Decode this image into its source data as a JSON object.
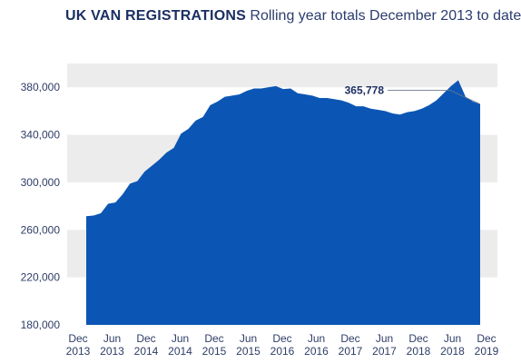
{
  "chart_data": {
    "type": "area",
    "title": "UK VAN REGISTRATIONS",
    "subtitle": "Rolling year totals December 2013 to date",
    "xlabel": "",
    "ylabel": "",
    "ylim": [
      180000,
      400000
    ],
    "ytick_values": [
      180000,
      220000,
      260000,
      300000,
      340000,
      380000
    ],
    "ytick_labels": [
      "180,000",
      "220,000",
      "260,000",
      "300,000",
      "340,000",
      "380,000"
    ],
    "xtick_labels": [
      [
        "Dec",
        "2013"
      ],
      [
        "Jun",
        "2013"
      ],
      [
        "Dec",
        "2014"
      ],
      [
        "Jun",
        "2014"
      ],
      [
        "Dec",
        "2015"
      ],
      [
        "Jun",
        "2015"
      ],
      [
        "Dec",
        "2016"
      ],
      [
        "Jun",
        "2016"
      ],
      [
        "Dec",
        "2017"
      ],
      [
        "Jun",
        "2017"
      ],
      [
        "Dec",
        "2018"
      ],
      [
        "Jun",
        "2018"
      ],
      [
        "Dec",
        "2019"
      ]
    ],
    "grid": "horizontal bands",
    "colors": {
      "fill": "#0b56b4",
      "band": "#ececec",
      "text": "#2e3d67",
      "title": "#1b2f63"
    },
    "annotation": {
      "label": "365,778",
      "value": 365778
    },
    "series": [
      {
        "values": [
          271500,
          272000,
          274000,
          282000,
          283000,
          290000,
          299000,
          301000,
          309000,
          314000,
          319000,
          325000,
          329000,
          341000,
          345000,
          352000,
          355000,
          365000,
          368000,
          372000,
          373000,
          374000,
          377000,
          379000,
          379000,
          380000,
          381000,
          378500,
          379000,
          375000,
          374000,
          373000,
          371000,
          371000,
          370000,
          369000,
          367000,
          364000,
          364000,
          362000,
          361000,
          360000,
          358000,
          357000,
          359000,
          360000,
          362000,
          365000,
          369000,
          375000,
          381000,
          386000,
          372000,
          368000,
          365778
        ]
      }
    ]
  }
}
